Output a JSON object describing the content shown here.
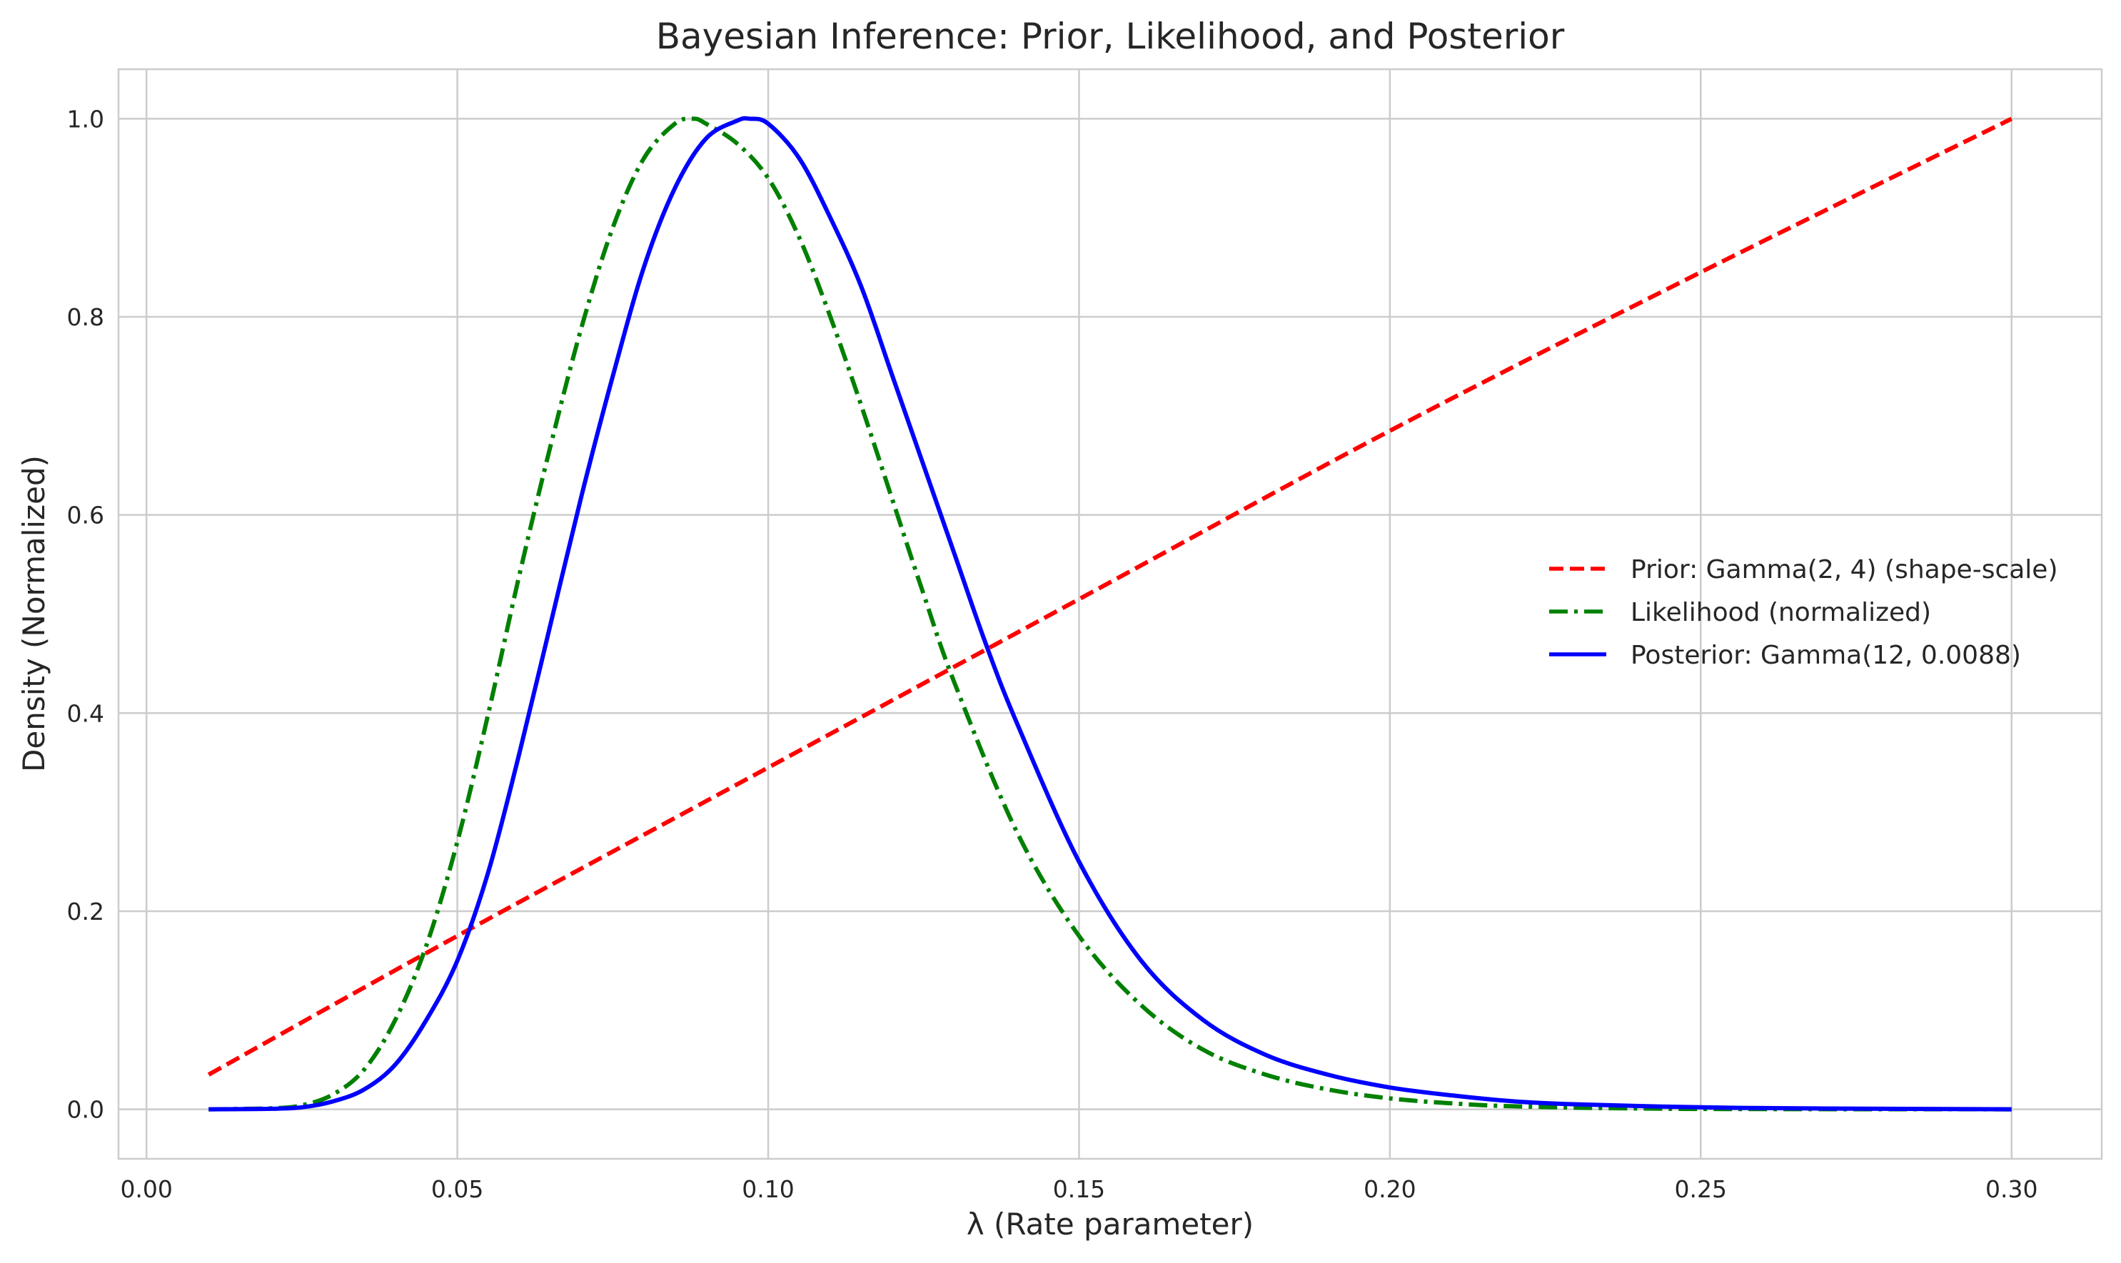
{
  "chart_data": {
    "type": "line",
    "title": "Bayesian Inference: Prior, Likelihood, and Posterior",
    "xlabel": "λ (Rate parameter)",
    "ylabel": "Density (Normalized)",
    "xlim": [
      -0.0045,
      0.3145
    ],
    "ylim": [
      -0.05,
      1.05
    ],
    "grid": true,
    "legend_position": "center-right",
    "x_ticks": [
      0.0,
      0.05,
      0.1,
      0.15,
      0.2,
      0.25,
      0.3
    ],
    "x_tick_labels": [
      "0.00",
      "0.05",
      "0.10",
      "0.15",
      "0.20",
      "0.25",
      "0.30"
    ],
    "y_ticks": [
      0.0,
      0.2,
      0.4,
      0.6,
      0.8,
      1.0
    ],
    "y_tick_labels": [
      "0.0",
      "0.2",
      "0.4",
      "0.6",
      "0.8",
      "1.0"
    ],
    "series": [
      {
        "name": "Prior: Gamma(2, 4) (shape-scale)",
        "color": "#ff0000",
        "style": "dashed",
        "x": [
          0.01,
          0.05,
          0.1,
          0.15,
          0.2,
          0.25,
          0.3
        ],
        "y": [
          0.035,
          0.175,
          0.345,
          0.515,
          0.685,
          0.845,
          1.0
        ]
      },
      {
        "name": "Likelihood (normalized)",
        "color": "#008000",
        "style": "dashdot",
        "x": [
          0.01,
          0.02,
          0.025,
          0.03,
          0.035,
          0.04,
          0.045,
          0.05,
          0.055,
          0.06,
          0.065,
          0.07,
          0.075,
          0.08,
          0.085,
          0.088,
          0.09,
          0.095,
          0.1,
          0.105,
          0.11,
          0.115,
          0.12,
          0.125,
          0.13,
          0.14,
          0.15,
          0.16,
          0.17,
          0.18,
          0.19,
          0.2,
          0.21,
          0.22,
          0.24,
          0.26,
          0.3
        ],
        "y": [
          0.0,
          0.001,
          0.004,
          0.015,
          0.04,
          0.09,
          0.165,
          0.27,
          0.4,
          0.54,
          0.67,
          0.79,
          0.89,
          0.96,
          0.995,
          1.0,
          0.995,
          0.975,
          0.94,
          0.88,
          0.8,
          0.71,
          0.615,
          0.52,
          0.43,
          0.28,
          0.175,
          0.105,
          0.06,
          0.035,
          0.02,
          0.011,
          0.006,
          0.003,
          0.0008,
          0.0002,
          0.0
        ]
      },
      {
        "name": "Posterior: Gamma(12, 0.0088)",
        "color": "#0000ff",
        "style": "solid",
        "x": [
          0.01,
          0.02,
          0.025,
          0.03,
          0.035,
          0.04,
          0.045,
          0.05,
          0.055,
          0.06,
          0.065,
          0.07,
          0.075,
          0.08,
          0.085,
          0.09,
          0.095,
          0.097,
          0.1,
          0.105,
          0.11,
          0.115,
          0.12,
          0.125,
          0.13,
          0.135,
          0.14,
          0.15,
          0.16,
          0.17,
          0.18,
          0.19,
          0.2,
          0.21,
          0.22,
          0.23,
          0.25,
          0.27,
          0.3
        ],
        "y": [
          0.0,
          0.0005,
          0.002,
          0.008,
          0.02,
          0.045,
          0.09,
          0.15,
          0.24,
          0.36,
          0.49,
          0.62,
          0.74,
          0.85,
          0.93,
          0.98,
          0.998,
          1.0,
          0.995,
          0.96,
          0.9,
          0.83,
          0.74,
          0.65,
          0.56,
          0.47,
          0.39,
          0.25,
          0.15,
          0.09,
          0.055,
          0.035,
          0.022,
          0.014,
          0.008,
          0.005,
          0.002,
          0.0008,
          0.0
        ]
      }
    ]
  }
}
